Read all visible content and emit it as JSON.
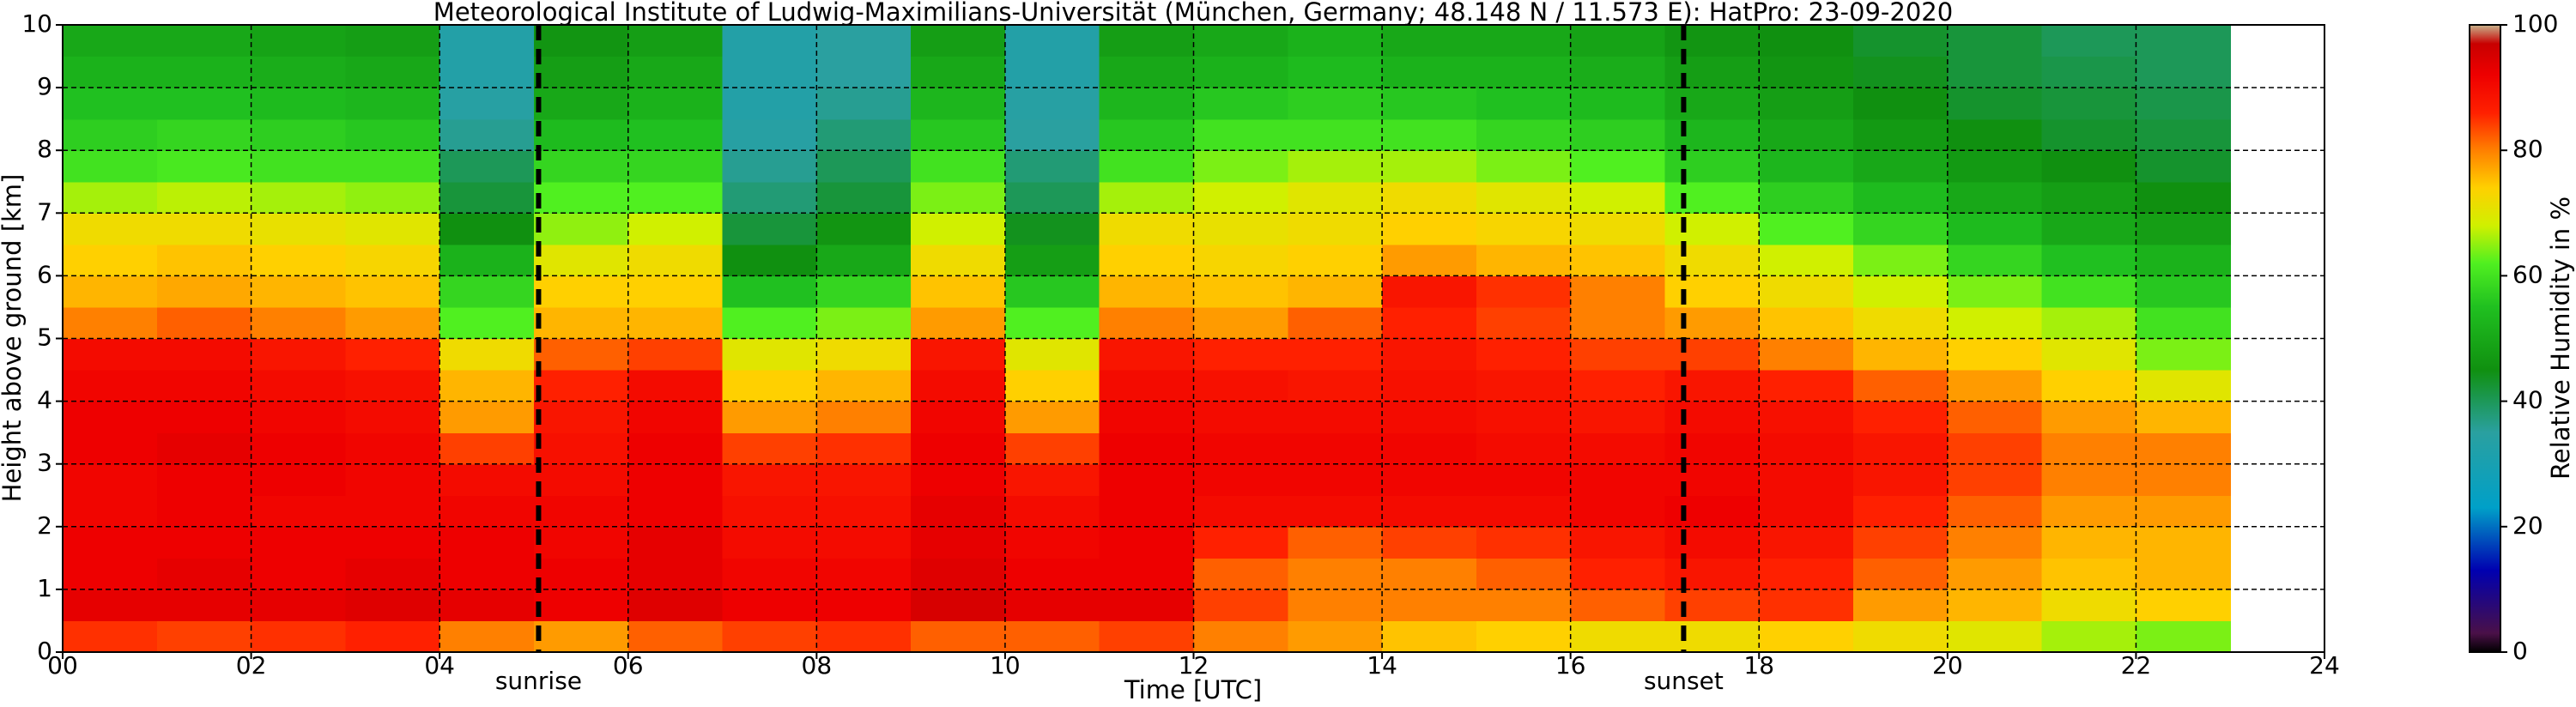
{
  "chart_data": {
    "type": "heatmap",
    "title": "Meteorological Institute of Ludwig-Maximilians-Universität (München, Germany; 48.148 N / 11.573 E):    HatPro: 23-09-2020",
    "xlabel": "Time [UTC]",
    "ylabel": "Height above ground [km]",
    "xlim": [
      0,
      24
    ],
    "ylim": [
      0,
      10
    ],
    "xticks": [
      {
        "value": 0,
        "label": "00"
      },
      {
        "value": 2,
        "label": "02"
      },
      {
        "value": 4,
        "label": "04"
      },
      {
        "value": 6,
        "label": "06"
      },
      {
        "value": 8,
        "label": "08"
      },
      10,
      12,
      14,
      16,
      18,
      20,
      22,
      24
    ],
    "yticks": [
      0,
      1,
      2,
      3,
      4,
      5,
      6,
      7,
      8,
      9,
      10
    ],
    "grid": true,
    "xbins": [
      0,
      1,
      2,
      3,
      4,
      5,
      6,
      7,
      8,
      9,
      10,
      11,
      12,
      13,
      14,
      15,
      16,
      17,
      18,
      19,
      20,
      21,
      22,
      23
    ],
    "ybins": [
      0,
      0.5,
      1,
      1.5,
      2,
      2.5,
      3,
      3.5,
      4,
      4.5,
      5,
      5.5,
      6,
      6.5,
      7,
      7.5,
      8,
      8.5,
      9,
      9.5,
      10
    ],
    "values": [
      [
        85,
        93,
        92,
        92,
        91,
        91,
        92,
        92,
        91,
        90,
        80,
        76,
        74,
        72,
        66,
        60,
        57,
        55,
        52,
        50
      ],
      [
        84,
        93,
        93,
        92,
        92,
        92,
        93,
        92,
        91,
        90,
        82,
        77,
        75,
        72,
        67,
        61,
        58,
        55,
        52,
        50
      ],
      [
        85,
        93,
        92,
        92,
        91,
        92,
        92,
        91,
        90,
        88,
        80,
        76,
        74,
        71,
        66,
        60,
        57,
        54,
        51,
        49
      ],
      [
        86,
        94,
        93,
        92,
        91,
        91,
        91,
        90,
        89,
        86,
        78,
        75,
        73,
        70,
        65,
        60,
        56,
        53,
        50,
        48
      ],
      [
        80,
        93,
        92,
        92,
        91,
        90,
        84,
        78,
        76,
        72,
        62,
        58,
        52,
        45,
        42,
        40,
        36,
        34,
        33,
        33
      ],
      [
        78,
        92,
        92,
        91,
        91,
        90,
        89,
        88,
        86,
        82,
        76,
        74,
        70,
        65,
        62,
        58,
        54,
        50,
        48,
        46
      ],
      [
        82,
        94,
        93,
        93,
        92,
        92,
        92,
        91,
        90,
        84,
        76,
        74,
        72,
        68,
        62,
        58,
        55,
        52,
        50,
        48
      ],
      [
        84,
        92,
        91,
        90,
        89,
        88,
        84,
        78,
        74,
        70,
        62,
        55,
        45,
        42,
        38,
        36,
        34,
        33,
        33,
        33
      ],
      [
        85,
        92,
        91,
        90,
        89,
        88,
        85,
        80,
        76,
        72,
        64,
        58,
        50,
        46,
        42,
        40,
        38,
        36,
        35,
        35
      ],
      [
        82,
        95,
        94,
        93,
        93,
        92,
        92,
        91,
        90,
        88,
        78,
        75,
        72,
        68,
        64,
        60,
        56,
        53,
        50,
        48
      ],
      [
        82,
        93,
        92,
        91,
        90,
        88,
        84,
        78,
        74,
        70,
        62,
        56,
        48,
        44,
        40,
        38,
        35,
        34,
        33,
        33
      ],
      [
        84,
        93,
        92,
        92,
        92,
        92,
        92,
        91,
        90,
        88,
        80,
        76,
        74,
        72,
        66,
        60,
        56,
        53,
        50,
        48
      ],
      [
        80,
        84,
        82,
        86,
        90,
        91,
        91,
        90,
        89,
        86,
        78,
        75,
        73,
        71,
        68,
        64,
        60,
        56,
        52,
        50
      ],
      [
        78,
        80,
        80,
        82,
        90,
        91,
        91,
        90,
        88,
        86,
        82,
        76,
        74,
        72,
        70,
        66,
        60,
        57,
        54,
        52
      ],
      [
        75,
        80,
        80,
        84,
        90,
        91,
        91,
        90,
        89,
        88,
        86,
        88,
        78,
        74,
        72,
        66,
        60,
        56,
        52,
        50
      ],
      [
        74,
        80,
        82,
        85,
        90,
        91,
        90,
        89,
        88,
        86,
        84,
        85,
        76,
        73,
        70,
        64,
        58,
        55,
        52,
        50
      ],
      [
        72,
        82,
        86,
        88,
        91,
        91,
        90,
        88,
        86,
        84,
        80,
        80,
        75,
        72,
        68,
        62,
        57,
        54,
        51,
        49
      ],
      [
        72,
        84,
        88,
        90,
        92,
        91,
        91,
        90,
        88,
        84,
        78,
        74,
        72,
        68,
        62,
        57,
        53,
        50,
        48,
        46
      ],
      [
        74,
        85,
        86,
        88,
        90,
        90,
        90,
        89,
        86,
        80,
        75,
        72,
        68,
        62,
        57,
        53,
        50,
        48,
        46,
        45
      ],
      [
        72,
        78,
        82,
        84,
        86,
        88,
        88,
        86,
        82,
        76,
        72,
        68,
        64,
        58,
        54,
        50,
        47,
        45,
        44,
        43
      ],
      [
        70,
        76,
        78,
        80,
        82,
        84,
        84,
        82,
        78,
        74,
        68,
        64,
        58,
        54,
        50,
        47,
        45,
        43,
        42,
        42
      ],
      [
        66,
        72,
        75,
        76,
        78,
        80,
        80,
        78,
        74,
        70,
        66,
        60,
        55,
        50,
        48,
        45,
        43,
        42,
        41,
        40
      ],
      [
        64,
        74,
        76,
        76,
        78,
        80,
        80,
        76,
        70,
        64,
        60,
        56,
        52,
        48,
        45,
        43,
        42,
        41,
        40,
        40
      ]
    ],
    "annotations": [
      {
        "text": "sunrise",
        "x": 5.05
      },
      {
        "text": "sunset",
        "x": 17.2
      }
    ],
    "colorbar": {
      "label": "Relative Humidity in %",
      "lim": [
        0,
        100
      ],
      "ticks": [
        0,
        20,
        40,
        60,
        80,
        100
      ],
      "stops": [
        {
          "value": 0,
          "color": "#000000"
        },
        {
          "value": 3,
          "color": "#4a1048"
        },
        {
          "value": 13,
          "color": "#0000b0"
        },
        {
          "value": 23,
          "color": "#00a0c8"
        },
        {
          "value": 35,
          "color": "#2aa0a0"
        },
        {
          "value": 45,
          "color": "#109010"
        },
        {
          "value": 55,
          "color": "#20c020"
        },
        {
          "value": 62,
          "color": "#50f020"
        },
        {
          "value": 68,
          "color": "#d0f000"
        },
        {
          "value": 74,
          "color": "#ffd000"
        },
        {
          "value": 80,
          "color": "#ff8000"
        },
        {
          "value": 86,
          "color": "#ff2000"
        },
        {
          "value": 92,
          "color": "#ee0000"
        },
        {
          "value": 97,
          "color": "#c80000"
        },
        {
          "value": 100,
          "color": "#c8b48c"
        }
      ]
    }
  }
}
